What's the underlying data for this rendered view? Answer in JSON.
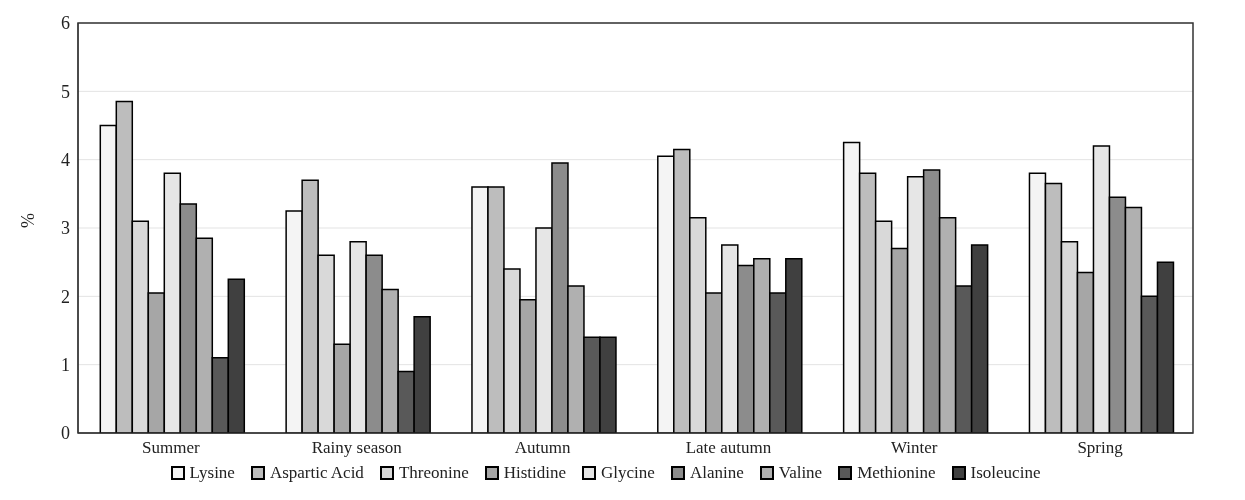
{
  "chart_data": {
    "type": "bar",
    "ylabel": "%",
    "categories": [
      "Summer",
      "Rainy season",
      "Autumn",
      "Late autumn",
      "Winter",
      "Spring"
    ],
    "series": [
      {
        "name": "Lysine",
        "color": "#f4f4f4",
        "values": [
          4.5,
          3.25,
          3.6,
          4.05,
          4.25,
          3.8
        ]
      },
      {
        "name": "Aspartic Acid",
        "color": "#bdbdbd",
        "values": [
          4.85,
          3.7,
          3.6,
          4.15,
          3.8,
          3.65
        ]
      },
      {
        "name": "Threonine",
        "color": "#d9d9d9",
        "values": [
          3.1,
          2.6,
          2.4,
          3.15,
          3.1,
          2.8
        ]
      },
      {
        "name": "Histidine",
        "color": "#a6a6a6",
        "values": [
          2.05,
          1.3,
          1.95,
          2.05,
          2.7,
          2.35
        ]
      },
      {
        "name": "Glycine",
        "color": "#e6e6e6",
        "values": [
          3.8,
          2.8,
          3.0,
          2.75,
          3.75,
          4.2
        ]
      },
      {
        "name": "Alanine",
        "color": "#8c8c8c",
        "values": [
          3.35,
          2.6,
          3.95,
          2.45,
          3.85,
          3.45
        ]
      },
      {
        "name": "Valine",
        "color": "#b0b0b0",
        "values": [
          2.85,
          2.1,
          2.15,
          2.55,
          3.15,
          3.3
        ]
      },
      {
        "name": "Methionine",
        "color": "#595959",
        "values": [
          1.1,
          0.9,
          1.4,
          2.05,
          2.15,
          2.0
        ]
      },
      {
        "name": "Isoleucine",
        "color": "#404040",
        "values": [
          2.25,
          1.7,
          1.4,
          2.55,
          2.75,
          2.5
        ]
      }
    ],
    "ylim": [
      0,
      6
    ],
    "yticks": [
      0,
      1,
      2,
      3,
      4,
      5,
      6
    ],
    "grid": "y",
    "legend": "bottom"
  }
}
